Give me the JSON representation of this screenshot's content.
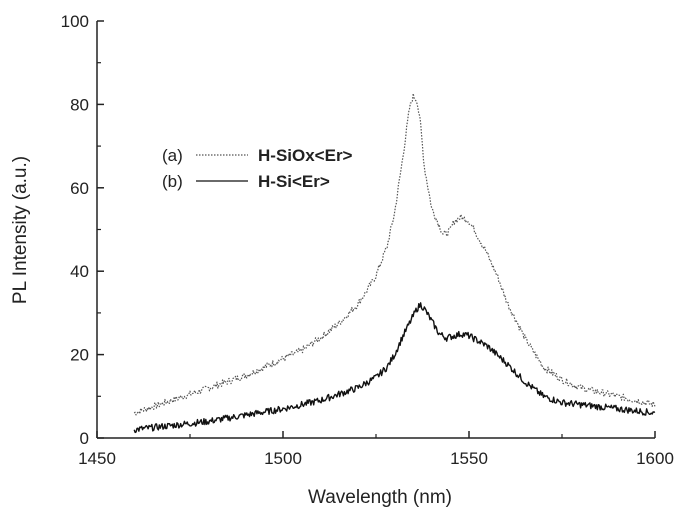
{
  "chart_data": {
    "type": "line",
    "title": "",
    "xlabel": "Wavelength (nm)",
    "ylabel": "PL Intensity (a.u.)",
    "xlim": [
      1450,
      1600
    ],
    "ylim": [
      0,
      100
    ],
    "xticks": [
      1450,
      1500,
      1550,
      1600
    ],
    "yticks": [
      0,
      20,
      40,
      60,
      80,
      100
    ],
    "grid": false,
    "legend_position": "middle-left",
    "series": [
      {
        "key": "(a)",
        "name": "H-SiOx<Er>",
        "style": "dotted",
        "color": "#555555",
        "x": [
          1460,
          1470,
          1480,
          1490,
          1500,
          1505,
          1510,
          1515,
          1520,
          1522,
          1525,
          1528,
          1530,
          1532,
          1534,
          1535,
          1536,
          1537,
          1538,
          1540,
          1542,
          1543,
          1544,
          1545,
          1546,
          1548,
          1550,
          1552,
          1555,
          1558,
          1560,
          1565,
          1570,
          1575,
          1580,
          1590,
          1600
        ],
        "y": [
          6,
          9,
          12,
          15,
          19,
          21,
          24,
          27.5,
          32,
          34.5,
          39,
          46,
          54,
          66,
          79,
          82,
          81,
          75,
          65,
          55,
          51,
          49,
          49,
          50,
          52,
          53,
          52,
          49,
          44,
          38,
          33,
          24,
          17,
          14,
          12,
          10,
          8
        ]
      },
      {
        "key": "(b)",
        "name": "H-Si<Er>",
        "style": "solid",
        "color": "#111111",
        "x": [
          1460,
          1470,
          1480,
          1490,
          1500,
          1510,
          1515,
          1520,
          1525,
          1528,
          1530,
          1532,
          1534,
          1536,
          1537,
          1538,
          1540,
          1542,
          1544,
          1546,
          1548,
          1550,
          1552,
          1555,
          1560,
          1565,
          1570,
          1575,
          1580,
          1590,
          1600
        ],
        "y": [
          2,
          3,
          4,
          5.5,
          7,
          9,
          10.5,
          12,
          14.5,
          17,
          20,
          24,
          27.5,
          31,
          32,
          31,
          28,
          25,
          24,
          24.5,
          25,
          24.5,
          23.5,
          22,
          18,
          13.5,
          10,
          8.5,
          8,
          7,
          6
        ]
      }
    ]
  }
}
